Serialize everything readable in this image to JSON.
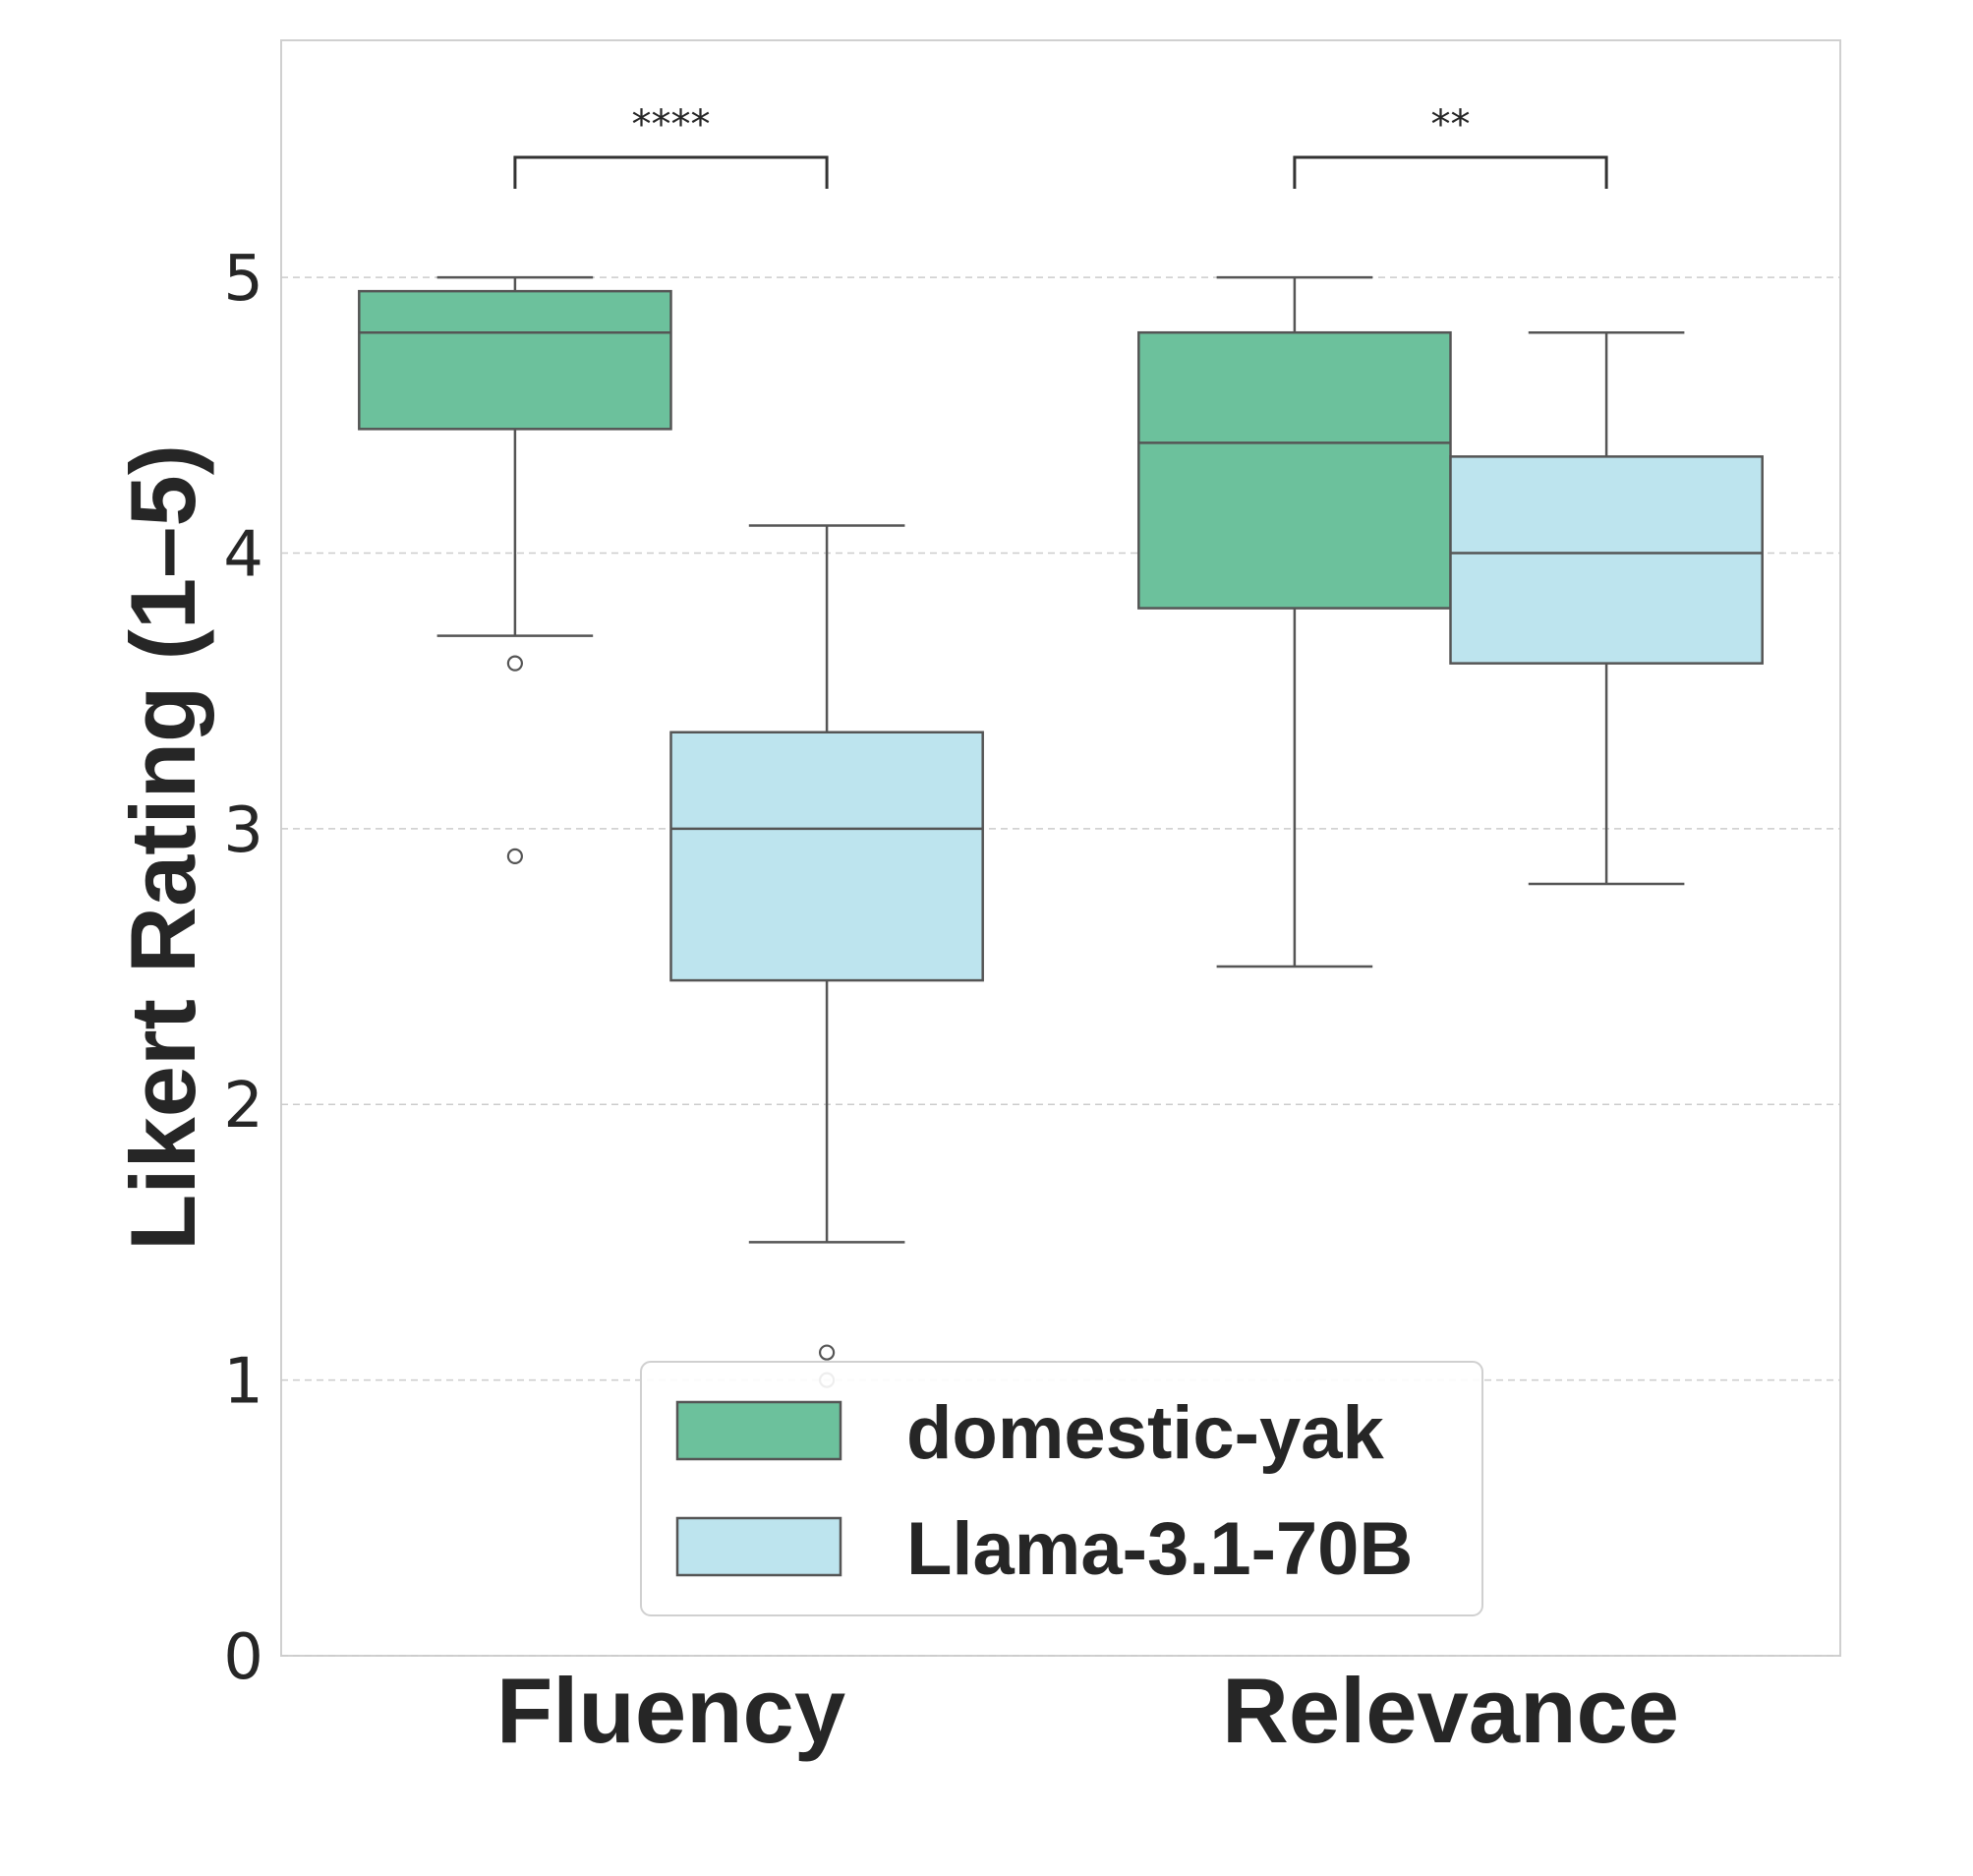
{
  "chart_data": {
    "type": "box",
    "ylabel": "Likert Rating (1–5)",
    "xlabel": "",
    "ylim": [
      0,
      5.86
    ],
    "yticks": [
      0,
      1,
      2,
      3,
      4,
      5
    ],
    "grid": "y-dashed",
    "legend_position": "bottom-center",
    "categories": [
      "Fluency",
      "Relevance"
    ],
    "series": [
      {
        "name": "domestic-yak",
        "color": "#6cc19c",
        "boxes": [
          {
            "category": "Fluency",
            "whisker_low": 3.7,
            "q1": 4.45,
            "median": 4.8,
            "q3": 4.95,
            "whisker_high": 5.0,
            "outliers": [
              3.6,
              2.9
            ]
          },
          {
            "category": "Relevance",
            "whisker_low": 2.5,
            "q1": 3.8,
            "median": 4.4,
            "q3": 4.8,
            "whisker_high": 5.0,
            "outliers": []
          }
        ]
      },
      {
        "name": "Llama-3.1-70B",
        "color": "#bde4ee",
        "boxes": [
          {
            "category": "Fluency",
            "whisker_low": 1.5,
            "q1": 2.45,
            "median": 3.0,
            "q3": 3.35,
            "whisker_high": 4.1,
            "outliers": [
              1.1,
              1.0
            ]
          },
          {
            "category": "Relevance",
            "whisker_low": 2.8,
            "q1": 3.6,
            "median": 4.0,
            "q3": 4.35,
            "whisker_high": 4.8,
            "outliers": []
          }
        ]
      }
    ],
    "annotations": [
      {
        "category": "Fluency",
        "text": "****"
      },
      {
        "category": "Relevance",
        "text": "**"
      }
    ]
  }
}
